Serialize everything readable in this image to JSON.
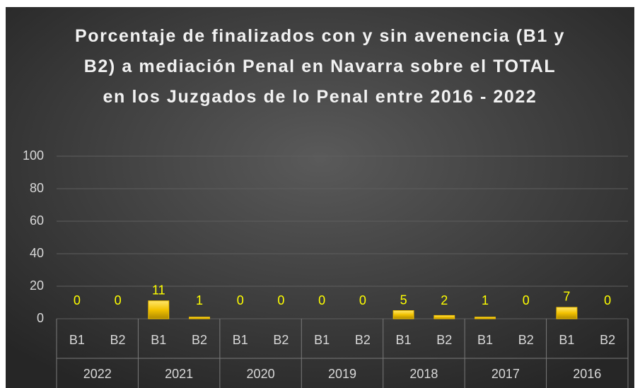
{
  "chart_data": {
    "type": "bar",
    "title": "Porcentaje de finalizados con y sin avenencia (B1 y B2) a mediación Penal en Navarra sobre el TOTAL en los Juzgados de lo Penal entre 2016 - 2022",
    "categories": [
      "B1",
      "B2",
      "B1",
      "B2",
      "B1",
      "B2",
      "B1",
      "B2",
      "B1",
      "B2",
      "B1",
      "B2",
      "B1",
      "B2"
    ],
    "groups": [
      "2022",
      "2021",
      "2020",
      "2019",
      "2018",
      "2017",
      "2016"
    ],
    "values": [
      0,
      0,
      11,
      1,
      0,
      0,
      0,
      0,
      5,
      2,
      1,
      0,
      7,
      0
    ],
    "color": "#f2c200",
    "ylim": [
      0,
      100
    ],
    "yticks": [
      0,
      20,
      40,
      60,
      80,
      100
    ],
    "grid": true
  }
}
